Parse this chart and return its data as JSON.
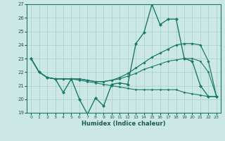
{
  "xlabel": "Humidex (Indice chaleur)",
  "ylabel": "",
  "bg_color": "#cce8e4",
  "grid_color": "#aad4cc",
  "line_color": "#1a7a6a",
  "xlim": [
    -0.5,
    23.5
  ],
  "ylim": [
    19,
    27
  ],
  "xticks": [
    0,
    1,
    2,
    3,
    4,
    5,
    6,
    7,
    8,
    9,
    10,
    11,
    12,
    13,
    14,
    15,
    16,
    17,
    18,
    19,
    20,
    21,
    22,
    23
  ],
  "yticks": [
    19,
    20,
    21,
    22,
    23,
    24,
    25,
    26,
    27
  ],
  "series": [
    {
      "x": [
        0,
        1,
        2,
        3,
        4,
        5,
        6,
        7,
        8,
        9,
        10,
        11,
        12,
        13,
        14,
        15,
        16,
        17,
        18,
        19,
        20,
        21,
        22,
        23
      ],
      "y": [
        23,
        22,
        21.6,
        21.5,
        20.5,
        21.5,
        20.0,
        18.9,
        20.1,
        19.5,
        21.1,
        21.2,
        21.1,
        24.1,
        24.9,
        27.0,
        25.5,
        25.9,
        25.9,
        23.0,
        22.8,
        21.0,
        20.2,
        20.2
      ],
      "marker": "D",
      "markersize": 2.2,
      "linewidth": 1.0
    },
    {
      "x": [
        0,
        1,
        2,
        3,
        4,
        5,
        6,
        7,
        8,
        9,
        10,
        11,
        12,
        13,
        14,
        15,
        16,
        17,
        18,
        19,
        20,
        21,
        22,
        23
      ],
      "y": [
        23,
        22,
        21.6,
        21.5,
        21.5,
        21.5,
        21.5,
        21.4,
        21.3,
        21.3,
        21.4,
        21.6,
        21.9,
        22.3,
        22.7,
        23.1,
        23.4,
        23.7,
        24.0,
        24.1,
        24.1,
        24.0,
        22.8,
        20.2
      ],
      "marker": "D",
      "markersize": 1.8,
      "linewidth": 0.9
    },
    {
      "x": [
        0,
        1,
        2,
        3,
        4,
        5,
        6,
        7,
        8,
        9,
        10,
        11,
        12,
        13,
        14,
        15,
        16,
        17,
        18,
        19,
        20,
        21,
        22,
        23
      ],
      "y": [
        23,
        22,
        21.6,
        21.5,
        21.5,
        21.5,
        21.5,
        21.4,
        21.3,
        21.3,
        21.4,
        21.5,
        21.7,
        21.9,
        22.2,
        22.4,
        22.6,
        22.8,
        22.9,
        23.0,
        23.0,
        22.8,
        22.0,
        20.2
      ],
      "marker": "D",
      "markersize": 1.5,
      "linewidth": 0.8
    },
    {
      "x": [
        0,
        1,
        2,
        3,
        4,
        5,
        6,
        7,
        8,
        9,
        10,
        11,
        12,
        13,
        14,
        15,
        16,
        17,
        18,
        19,
        20,
        21,
        22,
        23
      ],
      "y": [
        23,
        22,
        21.6,
        21.5,
        21.5,
        21.5,
        21.4,
        21.3,
        21.2,
        21.1,
        21.0,
        20.9,
        20.8,
        20.7,
        20.7,
        20.7,
        20.7,
        20.7,
        20.7,
        20.5,
        20.4,
        20.3,
        20.2,
        20.2
      ],
      "marker": "D",
      "markersize": 1.5,
      "linewidth": 0.8
    }
  ]
}
